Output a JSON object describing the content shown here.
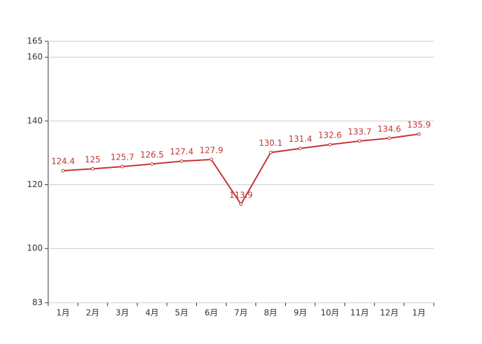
{
  "chart_data": {
    "type": "line",
    "categories": [
      "1月",
      "2月",
      "3月",
      "4月",
      "5月",
      "6月",
      "7月",
      "8月",
      "9月",
      "10月",
      "11月",
      "12月",
      "1月"
    ],
    "series": [
      {
        "color": "#c23531",
        "values": [
          124.4,
          125,
          125.7,
          126.5,
          127.4,
          127.9,
          113.9,
          130.1,
          131.4,
          132.6,
          133.7,
          134.6,
          135.9
        ]
      }
    ],
    "ylim": [
      83,
      165
    ],
    "yticks": [
      83,
      100,
      120,
      140,
      160,
      165
    ],
    "grid": true,
    "data_labels": true
  }
}
